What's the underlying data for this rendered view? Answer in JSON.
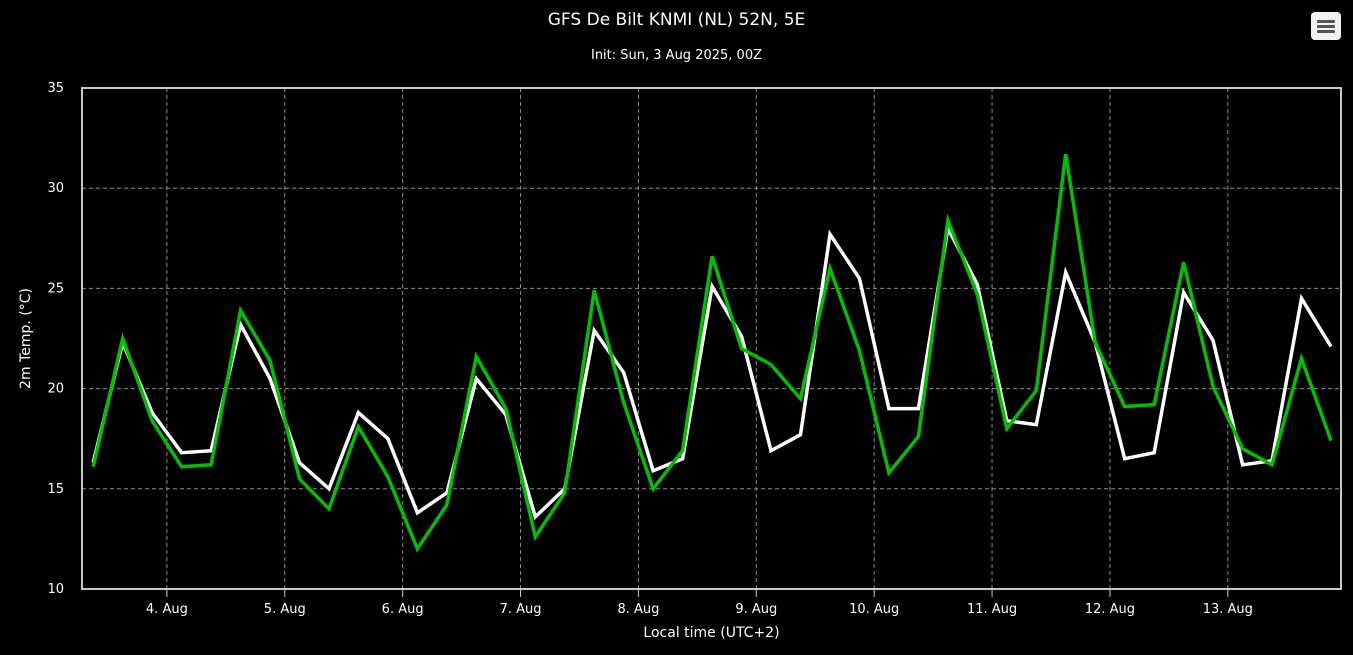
{
  "header": {
    "title": "GFS De Bilt KNMI (NL) 52N, 5E",
    "subtitle": "Init: Sun, 3 Aug 2025, 00Z",
    "menu_icon": "hamburger-menu-icon"
  },
  "colors": {
    "background": "#000000",
    "grid": "#8c8c8c",
    "frame": "#c8c8c8",
    "series_white": "#ffffff",
    "series_green": "#00c000"
  },
  "chart_data": {
    "type": "line",
    "xlabel": "Local time (UTC+2)",
    "ylabel": "2m Temp. (°C)",
    "ylim": [
      10,
      35
    ],
    "yticks": [
      "10",
      "15",
      "20",
      "25",
      "30",
      "35"
    ],
    "x_range_days": [
      3.28,
      13.96
    ],
    "xticks": [
      {
        "day": 4,
        "label": "4. Aug"
      },
      {
        "day": 5,
        "label": "5. Aug"
      },
      {
        "day": 6,
        "label": "6. Aug"
      },
      {
        "day": 7,
        "label": "7. Aug"
      },
      {
        "day": 8,
        "label": "8. Aug"
      },
      {
        "day": 9,
        "label": "9. Aug"
      },
      {
        "day": 10,
        "label": "10. Aug"
      },
      {
        "day": 11,
        "label": "11. Aug"
      },
      {
        "day": 12,
        "label": "12. Aug"
      },
      {
        "day": 13,
        "label": "13. Aug"
      }
    ],
    "grid": true,
    "x_days": [
      3.375,
      3.625,
      3.875,
      4.125,
      4.375,
      4.625,
      4.875,
      5.125,
      5.375,
      5.625,
      5.875,
      6.125,
      6.375,
      6.625,
      6.875,
      7.125,
      7.375,
      7.625,
      7.875,
      8.125,
      8.375,
      8.625,
      8.875,
      9.125,
      9.375,
      9.625,
      9.875,
      10.125,
      10.375,
      10.625,
      10.875,
      11.125,
      11.375,
      11.625,
      11.875,
      12.125,
      12.375,
      12.625,
      12.875,
      13.125,
      13.375,
      13.625,
      13.875
    ],
    "series": [
      {
        "color": "#ffffff",
        "values": [
          16.3,
          22.3,
          18.8,
          16.8,
          16.9,
          23.2,
          20.5,
          16.3,
          15.0,
          18.8,
          17.5,
          13.8,
          14.8,
          20.5,
          18.7,
          13.6,
          15.0,
          22.9,
          20.8,
          15.9,
          16.5,
          25.1,
          22.6,
          16.9,
          17.7,
          27.7,
          25.5,
          19.0,
          19.0,
          28.0,
          25.2,
          18.4,
          18.2,
          25.8,
          22.3,
          16.5,
          16.8,
          24.8,
          22.4,
          16.2,
          16.4,
          24.5,
          22.1
        ]
      },
      {
        "color": "#00c000",
        "values": [
          16.1,
          22.5,
          18.4,
          16.1,
          16.2,
          23.9,
          21.4,
          15.5,
          14.0,
          18.1,
          15.6,
          12.0,
          14.2,
          21.6,
          19.0,
          12.6,
          14.8,
          24.9,
          19.3,
          15.0,
          16.9,
          26.6,
          22.0,
          21.2,
          19.5,
          26.0,
          21.9,
          15.8,
          17.6,
          28.4,
          24.7,
          18.0,
          19.9,
          31.7,
          22.3,
          19.1,
          19.2,
          26.3,
          20.1,
          17.0,
          16.2,
          21.5,
          17.4
        ]
      }
    ]
  }
}
